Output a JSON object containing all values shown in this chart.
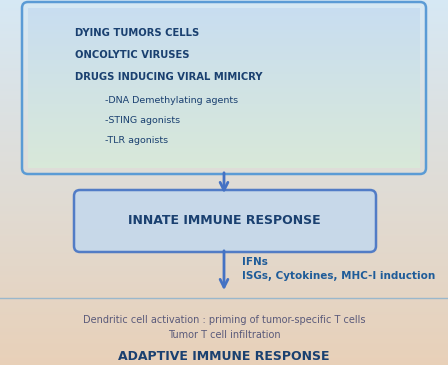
{
  "bg_color_top": "#d6e8f4",
  "bg_color_bottom": "#e8d0b8",
  "box1_color_top": "#c8ddf0",
  "box1_color_bottom": "#d8e8d8",
  "box1_border": "#5b9bd5",
  "box1_text_lines": [
    "DYING TUMORS CELLS",
    "ONCOLYTIC VIRUSES",
    "DRUGS INDUCING VIRAL MIMICRY"
  ],
  "box1_sublines": [
    "-DNA Demethylating agents",
    "-STING agonists",
    "-TLR agonists"
  ],
  "box2_text": "INNATE IMMUNE RESPONSE",
  "box2_color": "#c5d8ec",
  "box2_border": "#4472c4",
  "arrow_color": "#4472c4",
  "label1": "IFNs",
  "label2": "ISGs, Cytokines, MHC-I induction",
  "label_color": "#1f5c99",
  "bottom_text1": "Dendritic cell activation : priming of tumor-specific T cells",
  "bottom_text2": "Tumor T cell infiltration",
  "bottom_bold": "ADAPTIVE IMMUNE RESPONSE",
  "bottom_text_color": "#5a5a7a",
  "title_color": "#1a4070",
  "divider_color": "#9ab8cc"
}
